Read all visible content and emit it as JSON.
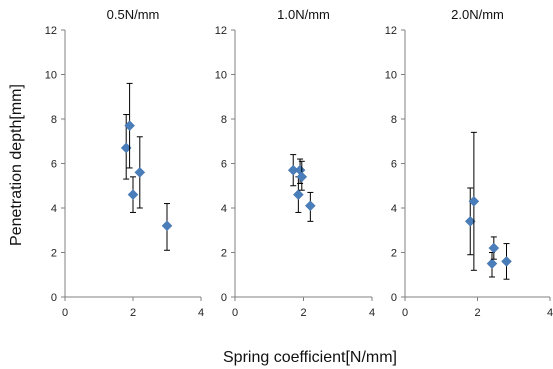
{
  "chart_data": {
    "type": "scatter",
    "xlabel": "Spring coefficient[N/mm]",
    "ylabel": "Penetration depth[mm]",
    "xlim": [
      0,
      4
    ],
    "ylim": [
      0,
      12
    ],
    "x_ticks": [
      "0",
      "2",
      "4"
    ],
    "y_ticks": [
      "0",
      "2",
      "4",
      "6",
      "8",
      "10",
      "12"
    ],
    "marker_color": "#4a7ebb",
    "errorbar_color": "#000000",
    "panels": [
      {
        "title": "0.5N/mm",
        "points": [
          {
            "x": 1.8,
            "y": 6.7,
            "y_low": 5.3,
            "y_high": 8.2
          },
          {
            "x": 1.9,
            "y": 7.7,
            "y_low": 5.8,
            "y_high": 9.6
          },
          {
            "x": 2.0,
            "y": 4.6,
            "y_low": 3.8,
            "y_high": 5.4
          },
          {
            "x": 2.2,
            "y": 5.6,
            "y_low": 4.0,
            "y_high": 7.2
          },
          {
            "x": 3.0,
            "y": 3.2,
            "y_low": 2.1,
            "y_high": 4.2
          }
        ]
      },
      {
        "title": "1.0N/mm",
        "points": [
          {
            "x": 1.7,
            "y": 5.7,
            "y_low": 5.0,
            "y_high": 6.4
          },
          {
            "x": 1.85,
            "y": 4.6,
            "y_low": 3.8,
            "y_high": 5.4
          },
          {
            "x": 1.9,
            "y": 5.7,
            "y_low": 5.1,
            "y_high": 6.2
          },
          {
            "x": 1.95,
            "y": 5.4,
            "y_low": 4.8,
            "y_high": 6.1
          },
          {
            "x": 2.2,
            "y": 4.1,
            "y_low": 3.4,
            "y_high": 4.7
          }
        ]
      },
      {
        "title": "2.0N/mm",
        "points": [
          {
            "x": 1.8,
            "y": 3.4,
            "y_low": 1.9,
            "y_high": 4.9
          },
          {
            "x": 1.9,
            "y": 4.3,
            "y_low": 1.2,
            "y_high": 7.4
          },
          {
            "x": 2.4,
            "y": 1.5,
            "y_low": 0.9,
            "y_high": 2.0
          },
          {
            "x": 2.45,
            "y": 2.2,
            "y_low": 1.7,
            "y_high": 2.7
          },
          {
            "x": 2.8,
            "y": 1.6,
            "y_low": 0.8,
            "y_high": 2.4
          }
        ]
      }
    ]
  }
}
